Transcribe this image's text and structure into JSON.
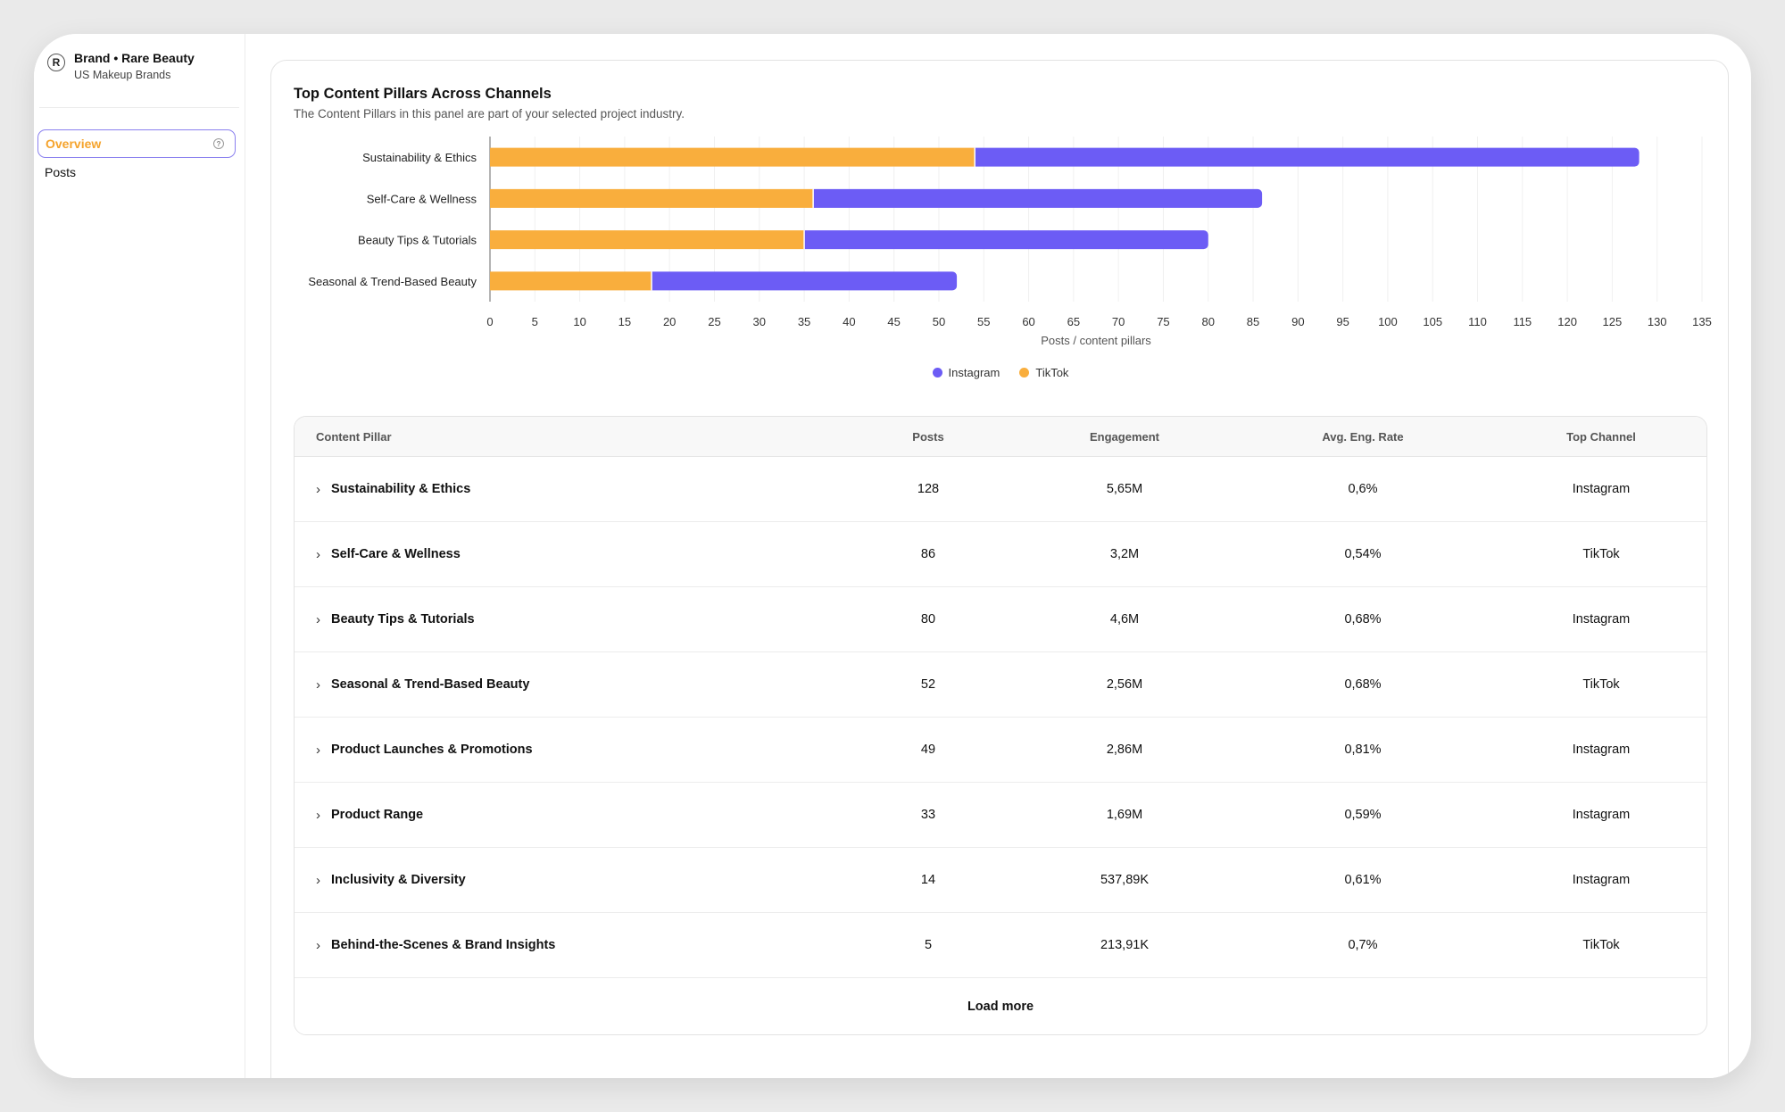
{
  "sidebar": {
    "brand_initial": "R",
    "brand_name": "Brand • Rare Beauty",
    "brand_subtitle": "US Makeup Brands",
    "items": [
      {
        "label": "Overview",
        "active": true
      },
      {
        "label": "Posts",
        "active": false
      }
    ]
  },
  "panel": {
    "title": "Top Content Pillars Across Channels",
    "subtitle": "The Content Pillars in this panel are part of your selected project industry."
  },
  "chart_data": {
    "type": "bar",
    "orientation": "horizontal",
    "stacked": true,
    "categories": [
      "Sustainability & Ethics",
      "Self-Care & Wellness",
      "Beauty Tips & Tutorials",
      "Seasonal & Trend-Based Beauty"
    ],
    "series": [
      {
        "name": "TikTok",
        "color": "#f9ae3d",
        "values": [
          54,
          36,
          35,
          18
        ]
      },
      {
        "name": "Instagram",
        "color": "#6c5cf5",
        "values": [
          74,
          50,
          45,
          34
        ]
      }
    ],
    "xlabel": "Posts / content pillars",
    "ylabel": "",
    "xlim": [
      0,
      135
    ],
    "xticks": [
      0,
      5,
      10,
      15,
      20,
      25,
      30,
      35,
      40,
      45,
      50,
      55,
      60,
      65,
      70,
      75,
      80,
      85,
      90,
      95,
      100,
      105,
      110,
      115,
      120,
      125,
      130,
      135
    ],
    "grid": true,
    "legend": {
      "position": "bottom",
      "entries": [
        "Instagram",
        "TikTok"
      ]
    }
  },
  "table": {
    "headers": {
      "pillar": "Content Pillar",
      "posts": "Posts",
      "engagement": "Engagement",
      "rate": "Avg. Eng. Rate",
      "channel": "Top Channel"
    },
    "rows": [
      {
        "pillar": "Sustainability & Ethics",
        "posts": "128",
        "engagement": "5,65M",
        "rate": "0,6%",
        "channel": "Instagram"
      },
      {
        "pillar": "Self-Care & Wellness",
        "posts": "86",
        "engagement": "3,2M",
        "rate": "0,54%",
        "channel": "TikTok"
      },
      {
        "pillar": "Beauty Tips & Tutorials",
        "posts": "80",
        "engagement": "4,6M",
        "rate": "0,68%",
        "channel": "Instagram"
      },
      {
        "pillar": "Seasonal & Trend-Based Beauty",
        "posts": "52",
        "engagement": "2,56M",
        "rate": "0,68%",
        "channel": "TikTok"
      },
      {
        "pillar": "Product Launches & Promotions",
        "posts": "49",
        "engagement": "2,86M",
        "rate": "0,81%",
        "channel": "Instagram"
      },
      {
        "pillar": "Product Range",
        "posts": "33",
        "engagement": "1,69M",
        "rate": "0,59%",
        "channel": "Instagram"
      },
      {
        "pillar": "Inclusivity & Diversity",
        "posts": "14",
        "engagement": "537,89K",
        "rate": "0,61%",
        "channel": "Instagram"
      },
      {
        "pillar": "Behind-the-Scenes & Brand Insights",
        "posts": "5",
        "engagement": "213,91K",
        "rate": "0,7%",
        "channel": "TikTok"
      }
    ],
    "load_more_label": "Load more"
  }
}
